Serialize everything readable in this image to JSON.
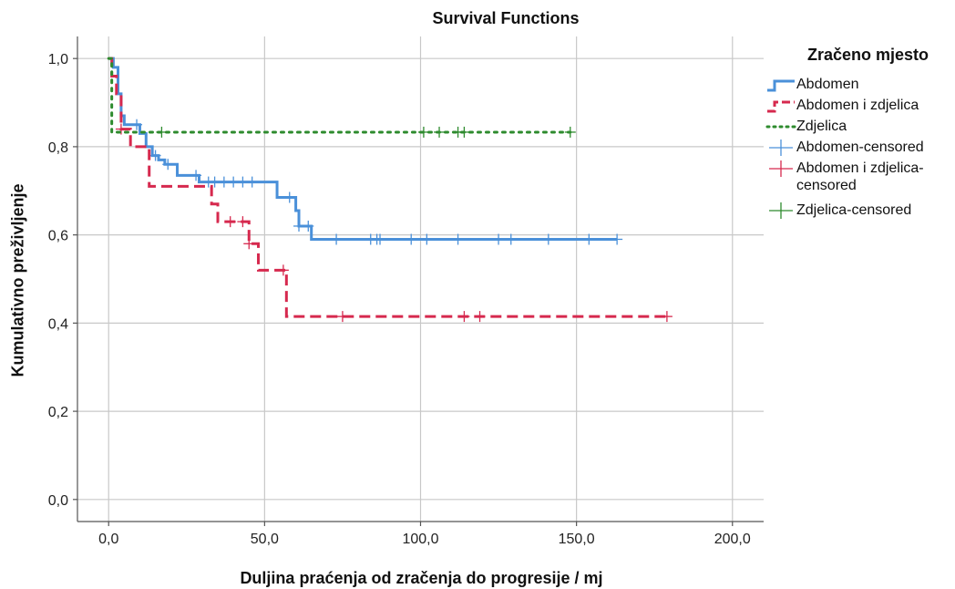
{
  "chart_data": {
    "type": "line",
    "title": "Survival Functions",
    "xlabel": "Duljina praćenja od zračenja do progresije / mj",
    "ylabel": "Kumulativno preživljenje",
    "xlim": [
      -10,
      210
    ],
    "ylim": [
      -0.05,
      1.05
    ],
    "xticks": [
      0,
      50,
      100,
      150,
      200
    ],
    "xtick_labels": [
      "0,0",
      "50,0",
      "100,0",
      "150,0",
      "200,0"
    ],
    "yticks": [
      0,
      0.2,
      0.4,
      0.6,
      0.8,
      1.0
    ],
    "ytick_labels": [
      "0,0",
      "0,2",
      "0,4",
      "0,6",
      "0,8",
      "1,0"
    ],
    "grid": true,
    "legend_title": "Zračeno mjesto",
    "legend_position": "right",
    "series": [
      {
        "name": "Abdomen",
        "color": "#4a90d9",
        "style": "solid",
        "steps": [
          [
            0,
            1.0
          ],
          [
            1.5,
            0.98
          ],
          [
            3,
            0.92
          ],
          [
            4,
            0.87
          ],
          [
            5,
            0.85
          ],
          [
            8,
            0.85
          ],
          [
            10,
            0.83
          ],
          [
            12,
            0.8
          ],
          [
            14,
            0.78
          ],
          [
            16,
            0.77
          ],
          [
            18,
            0.76
          ],
          [
            22,
            0.735
          ],
          [
            29,
            0.72
          ],
          [
            34,
            0.72
          ],
          [
            47,
            0.72
          ],
          [
            54,
            0.685
          ],
          [
            59,
            0.685
          ],
          [
            60,
            0.655
          ],
          [
            61,
            0.62
          ],
          [
            65,
            0.59
          ],
          [
            163,
            0.59
          ]
        ],
        "censored_x": [
          9,
          15,
          19,
          28,
          32,
          34,
          37,
          40,
          43,
          46,
          58,
          61,
          64,
          73,
          84,
          86,
          87,
          97,
          102,
          112,
          125,
          129,
          141,
          154,
          163
        ]
      },
      {
        "name": "Abdomen i zdjelica",
        "color": "#d6294e",
        "style": "dashed",
        "steps": [
          [
            0,
            1.0
          ],
          [
            1,
            0.96
          ],
          [
            2.5,
            0.92
          ],
          [
            4,
            0.84
          ],
          [
            7,
            0.8
          ],
          [
            13,
            0.71
          ],
          [
            33,
            0.67
          ],
          [
            35,
            0.63
          ],
          [
            45,
            0.58
          ],
          [
            48,
            0.52
          ],
          [
            57,
            0.415
          ],
          [
            179,
            0.415
          ]
        ],
        "censored_x": [
          4,
          39,
          43,
          45,
          56,
          75,
          114,
          119,
          179
        ]
      },
      {
        "name": "Zdjelica",
        "color": "#2e8b2e",
        "style": "dotted",
        "steps": [
          [
            0,
            1.0
          ],
          [
            1,
            0.833
          ],
          [
            148,
            0.833
          ]
        ],
        "censored_x": [
          17,
          101,
          106,
          112,
          114,
          148
        ]
      }
    ],
    "legend_items": [
      {
        "label": "Abdomen",
        "color": "#4a90d9",
        "kind": "line-solid"
      },
      {
        "label": "Abdomen i zdjelica",
        "color": "#d6294e",
        "kind": "line-dashed"
      },
      {
        "label": "Zdjelica",
        "color": "#2e8b2e",
        "kind": "line-dotted"
      },
      {
        "label": "Abdomen-censored",
        "color": "#4a90d9",
        "kind": "cross"
      },
      {
        "label": "Abdomen i zdjelica-\ncensored",
        "color": "#d6294e",
        "kind": "cross"
      },
      {
        "label": "Zdjelica-censored",
        "color": "#2e8b2e",
        "kind": "cross"
      }
    ]
  }
}
